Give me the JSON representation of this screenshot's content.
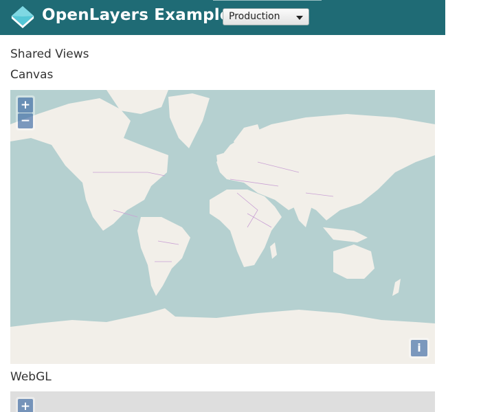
{
  "header": {
    "title": "OpenLayers Examples",
    "version_select": {
      "selected": "Production"
    },
    "brand_color": "#1f6b75"
  },
  "example_title": "Shared Views",
  "maps": [
    {
      "label": "Canvas",
      "zoom_in": "+",
      "zoom_out": "−",
      "attribution": "i"
    },
    {
      "label": "WebGL",
      "zoom_in": "+"
    }
  ],
  "colors": {
    "ocean": "#b5d0d0",
    "land": "#f2efe9",
    "borders": "#c9a0d4",
    "tiles_gray": "#dedede"
  }
}
